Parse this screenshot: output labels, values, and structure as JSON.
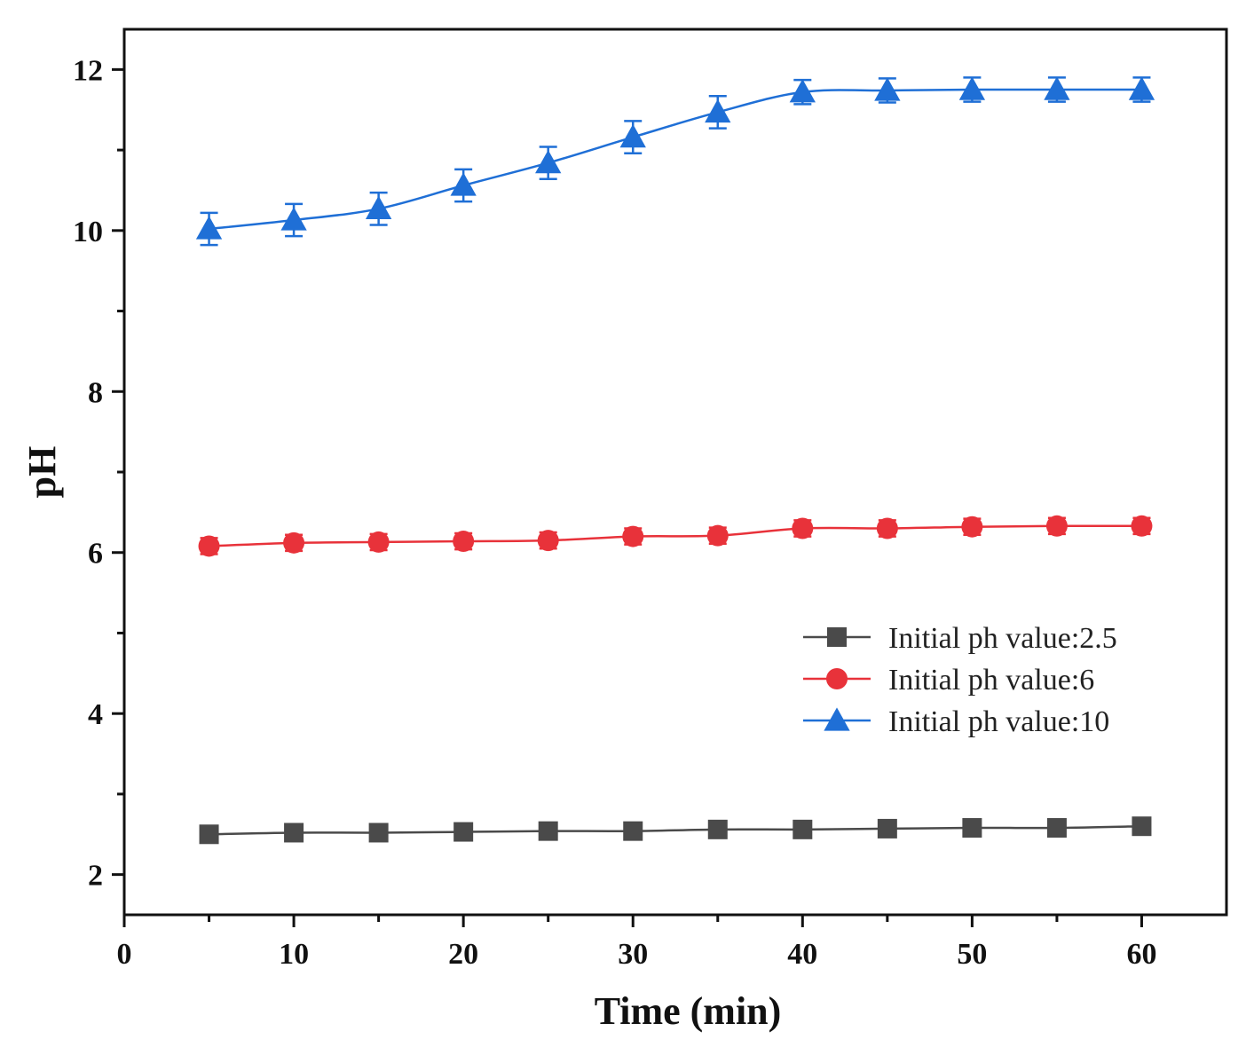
{
  "chart_data": {
    "type": "line",
    "title": "",
    "xlabel": "Time (min)",
    "ylabel": "pH",
    "xlim": [
      0,
      65
    ],
    "ylim": [
      1.5,
      12.5
    ],
    "xticks": [
      0,
      10,
      20,
      30,
      40,
      50,
      60
    ],
    "yticks": [
      2,
      4,
      6,
      8,
      10,
      12
    ],
    "legend_position": "center-right",
    "x": [
      5,
      10,
      15,
      20,
      25,
      30,
      35,
      40,
      45,
      50,
      55,
      60
    ],
    "series": [
      {
        "name": "Initial ph value:2.5",
        "marker": "square",
        "color": "#4a4a4a",
        "values": [
          2.5,
          2.52,
          2.52,
          2.53,
          2.54,
          2.54,
          2.56,
          2.56,
          2.57,
          2.58,
          2.58,
          2.6
        ],
        "error": [
          0.05,
          0.05,
          0.05,
          0.05,
          0.05,
          0.05,
          0.05,
          0.05,
          0.05,
          0.05,
          0.05,
          0.05
        ]
      },
      {
        "name": "Initial ph value:6",
        "marker": "circle",
        "color": "#e8323a",
        "values": [
          6.08,
          6.12,
          6.13,
          6.14,
          6.15,
          6.2,
          6.21,
          6.3,
          6.3,
          6.32,
          6.33,
          6.33
        ],
        "error": [
          0.1,
          0.1,
          0.1,
          0.1,
          0.1,
          0.1,
          0.1,
          0.1,
          0.1,
          0.1,
          0.1,
          0.1
        ]
      },
      {
        "name": "Initial ph value:10",
        "marker": "triangle",
        "color": "#1f6fd6",
        "values": [
          10.02,
          10.13,
          10.27,
          10.56,
          10.84,
          11.16,
          11.47,
          11.72,
          11.74,
          11.75,
          11.75,
          11.75
        ],
        "error": [
          0.2,
          0.2,
          0.2,
          0.2,
          0.2,
          0.2,
          0.2,
          0.15,
          0.15,
          0.15,
          0.15,
          0.15
        ]
      }
    ]
  }
}
